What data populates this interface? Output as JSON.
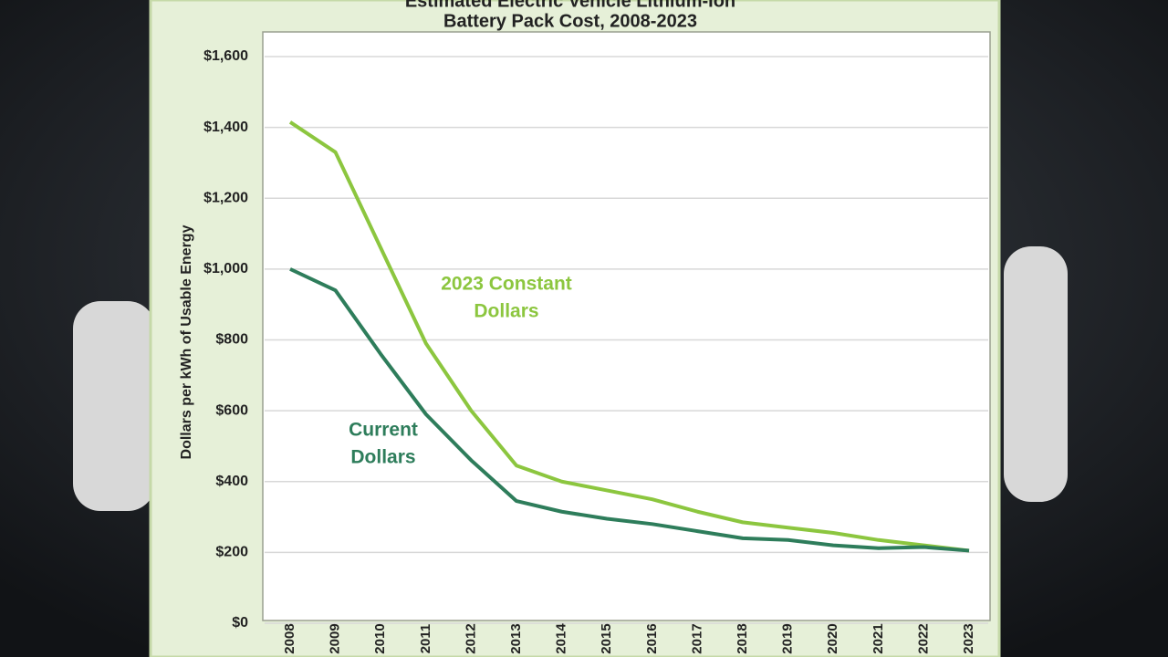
{
  "chart_data": {
    "type": "line",
    "title": "Estimated Electric Vehicle Lithium-Ion",
    "subtitle": "Battery Pack Cost, 2008-2023",
    "y_label": "Dollars per kWh of Usable Energy",
    "categories": [
      "2008",
      "2009",
      "2010",
      "2011",
      "2012",
      "2013",
      "2014",
      "2015",
      "2016",
      "2017",
      "2018",
      "2019",
      "2020",
      "2021",
      "2022",
      "2023"
    ],
    "series": [
      {
        "name": "2023 Constant Dollars",
        "color": "#8cc63f",
        "values": [
          1415,
          1330,
          1060,
          790,
          600,
          445,
          400,
          375,
          350,
          315,
          285,
          270,
          255,
          235,
          220,
          205
        ]
      },
      {
        "name": "Current Dollars",
        "color": "#2e7d5b",
        "values": [
          1000,
          940,
          760,
          590,
          460,
          345,
          315,
          295,
          280,
          260,
          240,
          235,
          220,
          212,
          215,
          205
        ]
      }
    ],
    "annotations": [
      {
        "lines": [
          "2023 Constant",
          "Dollars"
        ],
        "color": "#8cc63f"
      },
      {
        "lines": [
          "Current",
          "Dollars"
        ],
        "color": "#2e7d5b"
      }
    ],
    "ylim": [
      0,
      1600
    ],
    "yticks": [
      {
        "value": 0,
        "label": "$0"
      },
      {
        "value": 200,
        "label": "$200"
      },
      {
        "value": 400,
        "label": "$400"
      },
      {
        "value": 600,
        "label": "$600"
      },
      {
        "value": 800,
        "label": "$800"
      },
      {
        "value": 1000,
        "label": "$1,000"
      },
      {
        "value": 1200,
        "label": "$1,200"
      },
      {
        "value": 1400,
        "label": "$1,400"
      },
      {
        "value": 1600,
        "label": "$1,600"
      }
    ],
    "grid": true
  }
}
